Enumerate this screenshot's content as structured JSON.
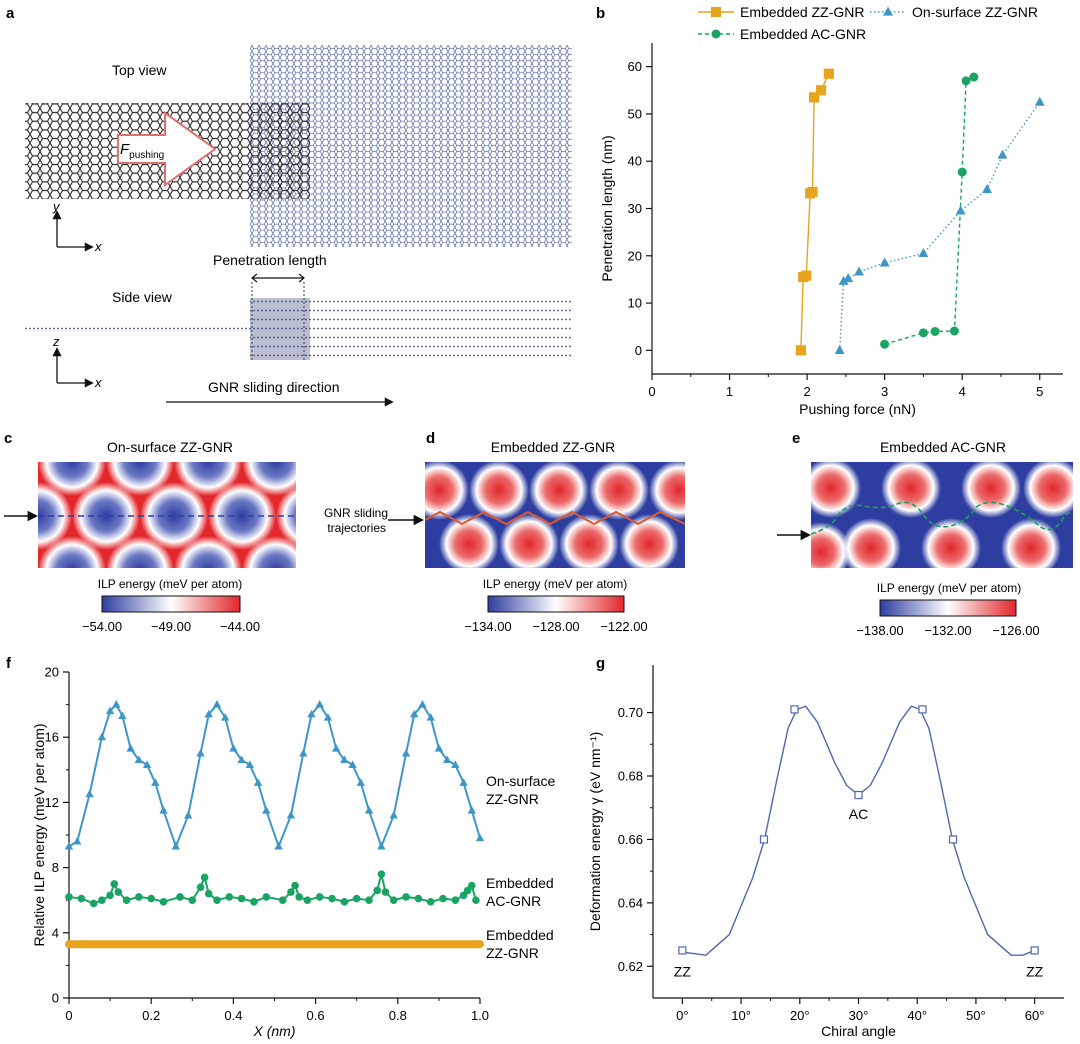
{
  "panel_a": {
    "label": "a",
    "top_view": "Top view",
    "side_view": "Side view",
    "force_symbol": "F",
    "force_subscript": "pushing",
    "axis_x": "x",
    "axis_y": "y",
    "axis_z": "z",
    "penetration_length": "Penetration length",
    "sliding_direction": "GNR sliding direction"
  },
  "panel_c": {
    "label": "c",
    "title": "On-surface ZZ-GNR",
    "cbar_title": "ILP energy (meV per atom)",
    "cbar_ticks": [
      "−54.00",
      "−49.00",
      "−44.00"
    ]
  },
  "panel_d": {
    "label": "d",
    "title": "Embedded ZZ-GNR",
    "trajectories_label_1": "GNR sliding",
    "trajectories_label_2": "trajectories",
    "cbar_title": "ILP energy (meV per atom)",
    "cbar_ticks": [
      "−134.00",
      "−128.00",
      "−122.00"
    ]
  },
  "panel_e": {
    "label": "e",
    "title": "Embedded AC-GNR",
    "cbar_title": "ILP energy (meV per atom)",
    "cbar_ticks": [
      "−138.00",
      "−132.00",
      "−126.00"
    ]
  },
  "colors": {
    "orange": "#e8a31d",
    "blue": "#3e96c8",
    "green": "#19a463",
    "map_blue": "#2e3da0",
    "map_red": "#e2262b",
    "curve_g": "#5068b0"
  },
  "chart_data": [
    {
      "id": "b",
      "label": "b",
      "type": "line",
      "xlabel": "Pushing force (nN)",
      "ylabel": "Penetration length (nm)",
      "xlim": [
        0,
        5.3
      ],
      "ylim": [
        -5,
        65
      ],
      "xticks": [
        "0",
        "1",
        "2",
        "3",
        "4",
        "5"
      ],
      "yticks": [
        "0",
        "10",
        "20",
        "30",
        "40",
        "50",
        "60"
      ],
      "legend": "top",
      "series": [
        {
          "name": "Embedded ZZ-GNR",
          "color": "#e8a31d",
          "marker": "square",
          "dash": "solid",
          "x": [
            1.92,
            1.95,
            1.99,
            2.04,
            2.07,
            2.09,
            2.18,
            2.28
          ],
          "y": [
            0,
            15.5,
            15.8,
            33.2,
            33.5,
            53.5,
            55,
            58.5
          ]
        },
        {
          "name": "Embedded AC-GNR",
          "color": "#19a463",
          "marker": "circle",
          "dash": "dash",
          "x": [
            3.0,
            3.5,
            3.65,
            3.9,
            4.0,
            4.05,
            4.15
          ],
          "y": [
            1.3,
            3.7,
            4.0,
            4.1,
            37.7,
            57.0,
            57.8
          ]
        },
        {
          "name": "On-surface ZZ-GNR",
          "color": "#3e96c8",
          "marker": "triangle",
          "dash": "dot",
          "x": [
            2.42,
            2.47,
            2.53,
            2.67,
            3.0,
            3.5,
            3.98,
            4.32,
            4.52,
            5.0
          ],
          "y": [
            0,
            14.6,
            15.2,
            16.6,
            18.5,
            20.5,
            29.5,
            34.0,
            41.3,
            52.5
          ]
        }
      ]
    },
    {
      "id": "f",
      "label": "f",
      "type": "line",
      "xlabel": "X (nm)",
      "ylabel": "Relative ILP energy (meV per atom)",
      "xlim": [
        0,
        1.0
      ],
      "ylim": [
        0,
        20
      ],
      "xticks": [
        "0",
        "0.2",
        "0.4",
        "0.6",
        "0.8",
        "1.0"
      ],
      "yticks": [
        "0",
        "4",
        "8",
        "12",
        "16",
        "20"
      ],
      "series": [
        {
          "name": "On-surface ZZ-GNR",
          "label_lines": [
            "On-surface",
            "ZZ-GNR"
          ],
          "color": "#3e96c8",
          "marker": "triangle",
          "x": [
            0.0,
            0.02,
            0.05,
            0.08,
            0.1,
            0.115,
            0.13,
            0.15,
            0.17,
            0.19,
            0.21,
            0.23,
            0.26,
            0.29,
            0.32,
            0.34,
            0.36,
            0.38,
            0.4,
            0.42,
            0.44,
            0.46,
            0.48,
            0.51,
            0.54,
            0.57,
            0.59,
            0.61,
            0.63,
            0.65,
            0.67,
            0.69,
            0.71,
            0.73,
            0.76,
            0.79,
            0.82,
            0.84,
            0.86,
            0.88,
            0.9,
            0.92,
            0.94,
            0.96,
            0.98,
            1.0
          ],
          "y": [
            9.3,
            9.6,
            12.5,
            16.0,
            17.6,
            18.0,
            17.3,
            15.3,
            14.6,
            14.3,
            13.2,
            11.5,
            9.3,
            11.2,
            15.0,
            17.4,
            18.0,
            17.2,
            15.3,
            14.6,
            14.3,
            13.2,
            11.5,
            9.3,
            11.2,
            15.0,
            17.4,
            18.0,
            17.2,
            15.3,
            14.6,
            14.3,
            13.2,
            11.5,
            9.3,
            11.2,
            15.0,
            17.4,
            18.0,
            17.2,
            15.3,
            14.6,
            14.3,
            13.2,
            11.5,
            9.8
          ]
        },
        {
          "name": "Embedded AC-GNR",
          "label_lines": [
            "Embedded",
            "AC-GNR"
          ],
          "color": "#19a463",
          "marker": "circle",
          "x": [
            0.0,
            0.03,
            0.06,
            0.08,
            0.1,
            0.11,
            0.12,
            0.14,
            0.17,
            0.2,
            0.23,
            0.27,
            0.3,
            0.32,
            0.33,
            0.34,
            0.36,
            0.39,
            0.42,
            0.45,
            0.48,
            0.52,
            0.54,
            0.55,
            0.56,
            0.58,
            0.61,
            0.64,
            0.67,
            0.7,
            0.73,
            0.75,
            0.76,
            0.77,
            0.79,
            0.82,
            0.85,
            0.88,
            0.91,
            0.94,
            0.96,
            0.97,
            0.98,
            0.99
          ],
          "y": [
            6.2,
            6.1,
            5.8,
            6.0,
            6.3,
            7.0,
            6.5,
            6.0,
            6.2,
            6.1,
            5.9,
            6.2,
            6.0,
            6.8,
            7.4,
            6.4,
            6.0,
            6.2,
            6.1,
            5.9,
            6.2,
            6.0,
            6.5,
            6.9,
            6.2,
            6.0,
            6.2,
            6.1,
            5.9,
            6.1,
            6.0,
            6.6,
            7.6,
            6.5,
            6.0,
            6.2,
            6.1,
            5.9,
            6.1,
            6.0,
            6.3,
            6.6,
            6.9,
            6.0
          ]
        },
        {
          "name": "Embedded ZZ-GNR",
          "label_lines": [
            "Embedded",
            "ZZ-GNR"
          ],
          "color": "#e8a31d",
          "marker": "circle",
          "x": [
            0.0,
            0.05,
            0.1,
            0.15,
            0.2,
            0.25,
            0.3,
            0.35,
            0.4,
            0.45,
            0.5,
            0.55,
            0.6,
            0.65,
            0.7,
            0.75,
            0.8,
            0.85,
            0.9,
            0.95,
            1.0
          ],
          "y": [
            3.3,
            3.3,
            3.3,
            3.3,
            3.3,
            3.3,
            3.3,
            3.3,
            3.3,
            3.3,
            3.3,
            3.3,
            3.3,
            3.3,
            3.3,
            3.3,
            3.3,
            3.3,
            3.3,
            3.3,
            3.3
          ]
        }
      ]
    },
    {
      "id": "g",
      "label": "g",
      "type": "line",
      "xlabel": "Chiral angle",
      "ylabel": "Deformation energy γ (eV nm⁻¹)",
      "xlim": [
        -5,
        65
      ],
      "ylim": [
        0.61,
        0.715
      ],
      "xticks": [
        "0°",
        "10°",
        "20°",
        "30°",
        "40°",
        "50°",
        "60°"
      ],
      "yticks": [
        "0.62",
        "0.64",
        "0.66",
        "0.68",
        "0.70"
      ],
      "annotations": [
        "ZZ",
        "AC",
        "ZZ"
      ],
      "points": {
        "x": [
          0,
          13.9,
          19.1,
          30,
          40.9,
          46.1,
          60
        ],
        "y": [
          0.625,
          0.66,
          0.701,
          0.674,
          0.701,
          0.66,
          0.625
        ]
      },
      "curve": {
        "x": [
          0,
          4,
          8,
          12,
          14,
          16,
          18,
          19.5,
          21,
          23,
          26,
          28,
          30,
          32,
          34,
          37,
          39,
          40.5,
          42,
          44,
          46,
          48,
          52,
          56,
          58,
          60
        ],
        "y": [
          0.6245,
          0.6235,
          0.63,
          0.648,
          0.66,
          0.678,
          0.695,
          0.701,
          0.702,
          0.697,
          0.684,
          0.677,
          0.674,
          0.677,
          0.684,
          0.697,
          0.702,
          0.701,
          0.695,
          0.678,
          0.66,
          0.648,
          0.63,
          0.6235,
          0.6235,
          0.625
        ]
      }
    }
  ]
}
